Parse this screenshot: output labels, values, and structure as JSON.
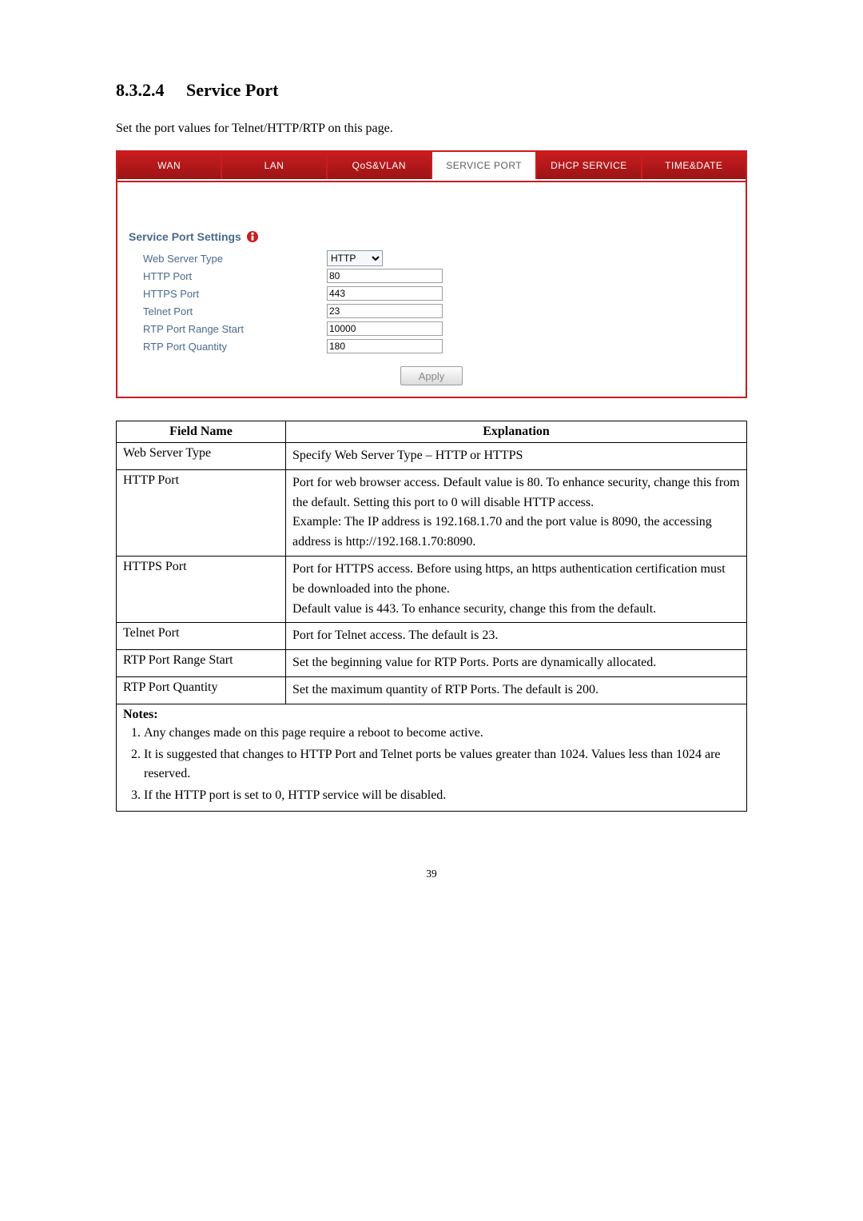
{
  "heading": {
    "number": "8.3.2.4",
    "title": "Service Port"
  },
  "intro": "Set the port values for Telnet/HTTP/RTP on this page.",
  "tabs": [
    {
      "label": "WAN",
      "active": false
    },
    {
      "label": "LAN",
      "active": false
    },
    {
      "label": "QoS&VLAN",
      "active": false
    },
    {
      "label": "SERVICE PORT",
      "active": true
    },
    {
      "label": "DHCP SERVICE",
      "active": false
    },
    {
      "label": "TIME&DATE",
      "active": false
    }
  ],
  "section_title": "Service Port Settings",
  "form": {
    "web_server_type": {
      "label": "Web Server Type",
      "value": "HTTP"
    },
    "http_port": {
      "label": "HTTP Port",
      "value": "80"
    },
    "https_port": {
      "label": "HTTPS Port",
      "value": "443"
    },
    "telnet_port": {
      "label": "Telnet Port",
      "value": "23"
    },
    "rtp_start": {
      "label": "RTP Port Range Start",
      "value": "10000"
    },
    "rtp_qty": {
      "label": "RTP Port Quantity",
      "value": "180"
    }
  },
  "apply_label": "Apply",
  "table": {
    "head_field": "Field Name",
    "head_expl": "Explanation",
    "rows": [
      {
        "field": "Web Server Type",
        "expl": "Specify Web Server Type – HTTP or HTTPS"
      },
      {
        "field": "HTTP Port",
        "expl": "Port for web browser access. Default value is 80. To enhance security, change this from the default. Setting this port to 0 will disable HTTP access.\nExample: The IP address is 192.168.1.70 and the port value is 8090, the accessing address is http://192.168.1.70:8090."
      },
      {
        "field": "HTTPS Port",
        "expl": "Port for HTTPS access.   Before using https, an https authentication certification must be downloaded into the phone.\nDefault value is 443. To enhance security, change this from the default."
      },
      {
        "field": "Telnet Port",
        "expl": "Port for Telnet access.   The default is 23."
      },
      {
        "field": "RTP Port Range Start",
        "expl": "Set the beginning value for RTP Ports. Ports are dynamically allocated."
      },
      {
        "field": "RTP Port Quantity",
        "expl": "Set the maximum quantity of RTP Ports.   The default is 200."
      }
    ],
    "notes_title": "Notes:",
    "notes": [
      "Any changes made on this page require a reboot to become active.",
      "It is suggested that changes to HTTP Port and Telnet ports be values greater than 1024. Values less than 1024 are reserved.",
      "If the HTTP port is set to 0, HTTP service will be disabled."
    ]
  },
  "page_number": "39",
  "colors": {
    "red": "#CB1C1F",
    "blue_text": "#4a6a8a"
  }
}
